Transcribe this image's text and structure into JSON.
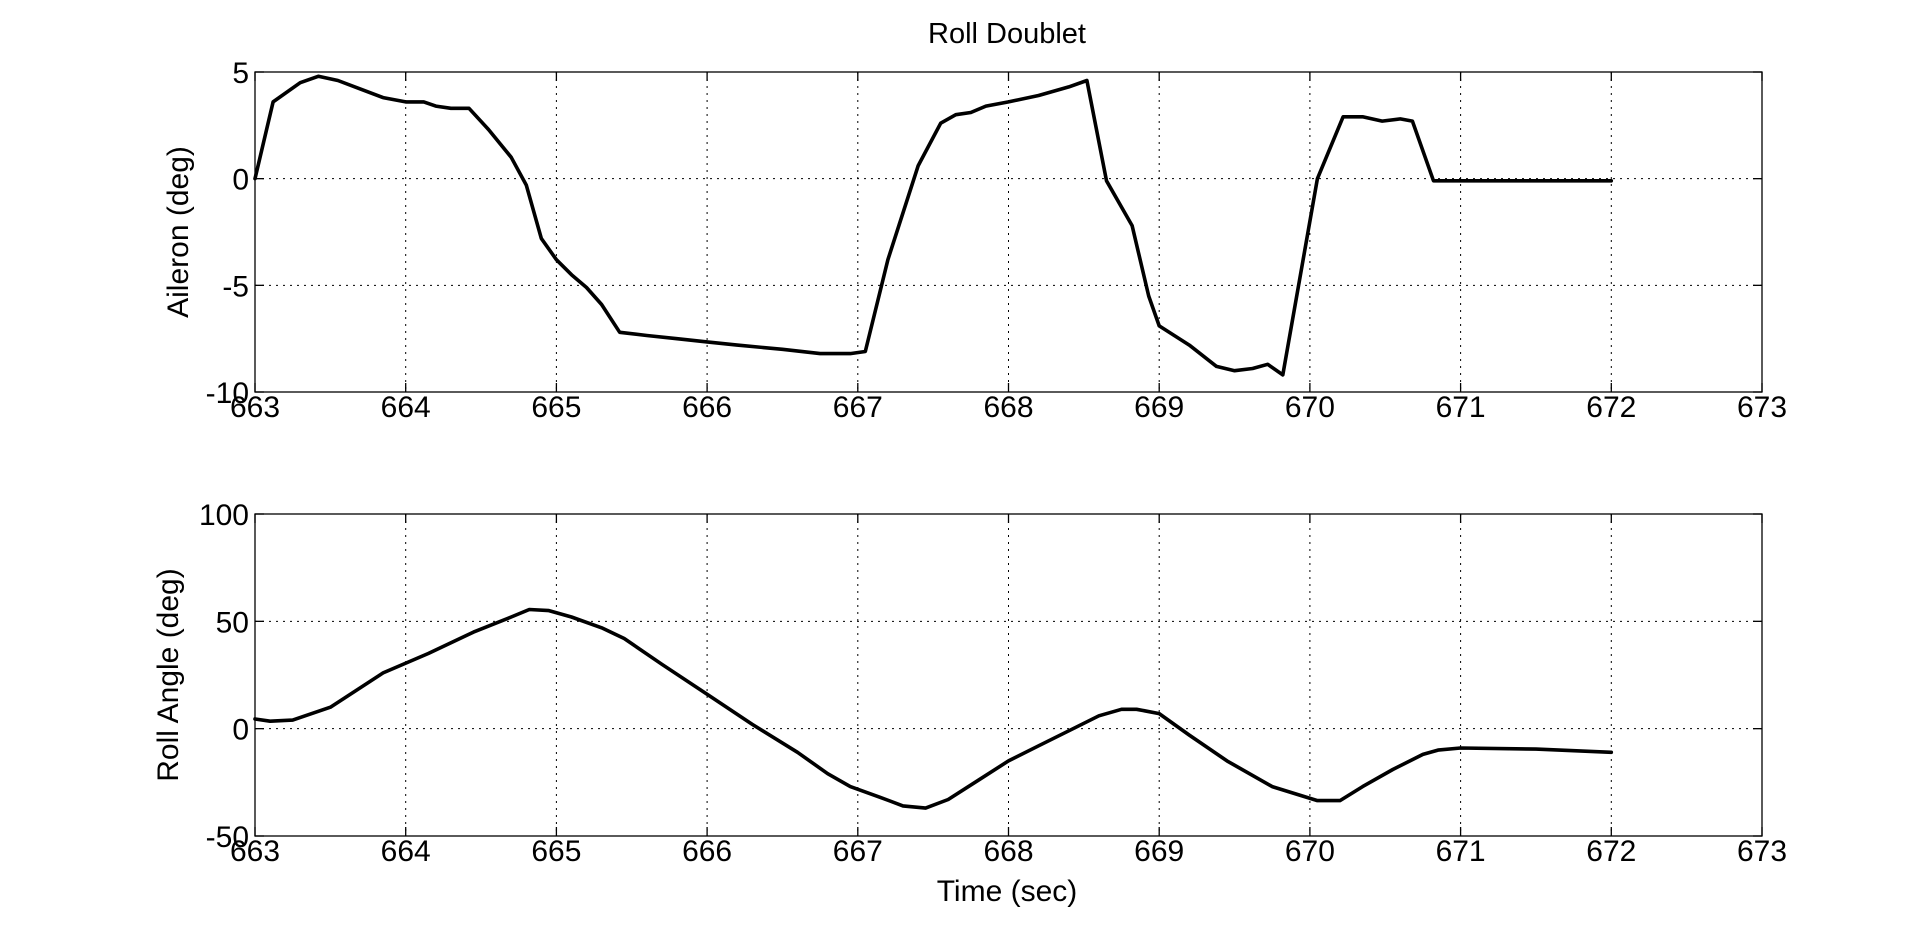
{
  "chart_data": [
    {
      "type": "line",
      "title": "Roll Doublet",
      "xlabel": "",
      "ylabel": "Aileron (deg)",
      "xlim": [
        663,
        673
      ],
      "ylim": [
        -10,
        5
      ],
      "xticks": [
        "663",
        "664",
        "665",
        "666",
        "667",
        "668",
        "669",
        "670",
        "671",
        "672",
        "673"
      ],
      "yticks": [
        "-10",
        "-5",
        "0",
        "5"
      ],
      "grid": true,
      "series": [
        {
          "x": [
            663.0,
            663.12,
            663.3,
            663.42,
            663.55,
            663.7,
            663.85,
            664.0,
            664.12,
            664.2,
            664.3,
            664.42,
            664.55,
            664.7,
            664.8,
            664.9,
            665.0,
            665.1,
            665.2,
            665.3,
            665.42,
            665.6,
            665.8,
            666.0,
            666.2,
            666.5,
            666.75,
            666.95,
            667.05,
            667.2,
            667.4,
            667.55,
            667.65,
            667.75,
            667.85,
            668.0,
            668.2,
            668.4,
            668.52,
            668.65,
            668.82,
            668.93,
            669.0,
            669.2,
            669.38,
            669.5,
            669.62,
            669.72,
            669.82,
            670.05,
            670.22,
            670.35,
            670.48,
            670.6,
            670.68,
            670.82,
            671.0,
            671.5,
            672.0
          ],
          "y": [
            0.0,
            3.6,
            4.5,
            4.8,
            4.6,
            4.2,
            3.8,
            3.6,
            3.6,
            3.4,
            3.3,
            3.3,
            2.3,
            1.0,
            -0.3,
            -2.8,
            -3.8,
            -4.5,
            -5.1,
            -5.9,
            -7.2,
            -7.35,
            -7.5,
            -7.65,
            -7.8,
            -8.0,
            -8.2,
            -8.2,
            -8.1,
            -3.8,
            0.6,
            2.6,
            3.0,
            3.1,
            3.4,
            3.6,
            3.9,
            4.3,
            4.6,
            -0.1,
            -2.2,
            -5.5,
            -6.9,
            -7.8,
            -8.8,
            -9.0,
            -8.9,
            -8.7,
            -9.2,
            0.0,
            2.9,
            2.9,
            2.7,
            2.8,
            2.7,
            -0.1,
            -0.1,
            -0.1,
            -0.1
          ]
        }
      ]
    },
    {
      "type": "line",
      "title": "",
      "xlabel": "Time (sec)",
      "ylabel": "Roll Angle (deg)",
      "xlim": [
        663,
        673
      ],
      "ylim": [
        -50,
        100
      ],
      "xticks": [
        "663",
        "664",
        "665",
        "666",
        "667",
        "668",
        "669",
        "670",
        "671",
        "672",
        "673"
      ],
      "yticks": [
        "-50",
        "0",
        "50",
        "100"
      ],
      "grid": true,
      "series": [
        {
          "x": [
            663.0,
            663.1,
            663.25,
            663.5,
            663.85,
            664.15,
            664.45,
            664.7,
            664.82,
            664.95,
            665.1,
            665.3,
            665.45,
            665.7,
            666.0,
            666.3,
            666.6,
            666.8,
            666.95,
            667.15,
            667.3,
            667.45,
            667.6,
            667.8,
            668.0,
            668.2,
            668.4,
            668.6,
            668.75,
            668.85,
            669.0,
            669.2,
            669.45,
            669.75,
            670.05,
            670.2,
            670.35,
            670.55,
            670.75,
            670.85,
            671.0,
            671.5,
            672.0
          ],
          "y": [
            4.5,
            3.5,
            4.0,
            10.0,
            26.0,
            35.0,
            45.0,
            52.0,
            55.5,
            55.0,
            52.0,
            47.0,
            42.0,
            30.0,
            16.0,
            2.0,
            -11.0,
            -21.0,
            -27.0,
            -32.0,
            -36.0,
            -37.0,
            -33.0,
            -24.0,
            -15.0,
            -8.0,
            -1.0,
            6.0,
            9.0,
            9.0,
            7.0,
            -3.0,
            -15.0,
            -27.0,
            -33.5,
            -33.5,
            -27.0,
            -19.0,
            -12.0,
            -10.0,
            -9.0,
            -9.5,
            -11.0
          ]
        }
      ]
    }
  ]
}
